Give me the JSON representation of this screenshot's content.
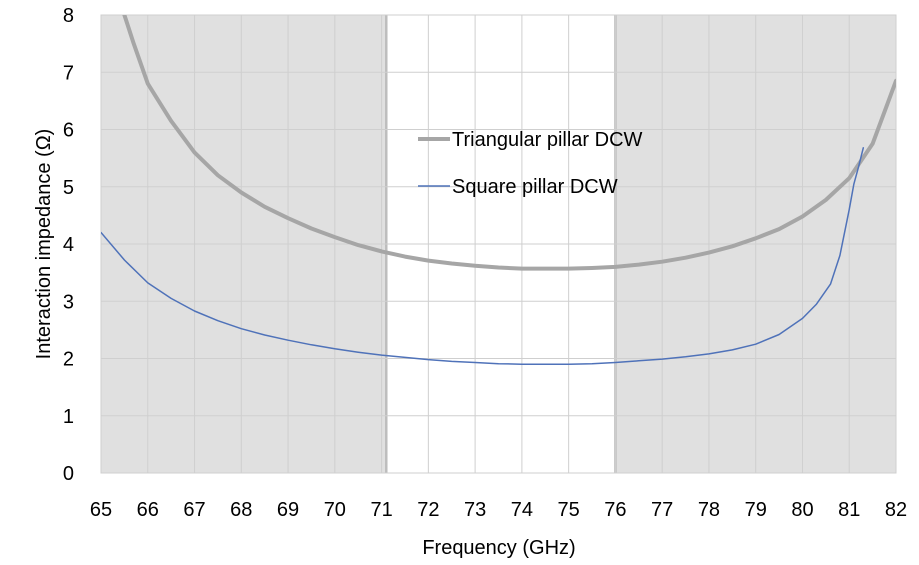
{
  "chart_data": {
    "type": "line",
    "title": "",
    "xlabel": "Frequency (GHz)",
    "ylabel": "Interaction impedance (Ω)",
    "xlim": [
      65,
      82
    ],
    "ylim": [
      0,
      8
    ],
    "x_ticks": [
      "65",
      "66",
      "67",
      "68",
      "69",
      "70",
      "71",
      "72",
      "73",
      "74",
      "75",
      "76",
      "77",
      "78",
      "79",
      "80",
      "81",
      "82"
    ],
    "y_ticks": [
      "0",
      "1",
      "2",
      "3",
      "4",
      "5",
      "6",
      "7",
      "8"
    ],
    "grid": true,
    "legend_position": "center-right",
    "shaded_regions": [
      {
        "from": 65,
        "to": 71.1,
        "color": "#e0e0e0"
      },
      {
        "from": 76,
        "to": 82,
        "color": "#e0e0e0"
      }
    ],
    "series": [
      {
        "name": "Triangular pillar DCW",
        "color": "#a6a6a6",
        "line": "thick",
        "x": [
          65.5,
          65.7,
          66,
          66.5,
          67,
          67.5,
          68,
          68.5,
          69,
          69.5,
          70,
          70.5,
          71,
          71.5,
          72,
          72.5,
          73,
          73.5,
          74,
          74.5,
          75,
          75.5,
          76,
          76.5,
          77,
          77.5,
          78,
          78.5,
          79,
          79.5,
          80,
          80.5,
          81,
          81.5,
          82
        ],
        "values": [
          8.0,
          7.5,
          6.8,
          6.15,
          5.6,
          5.2,
          4.9,
          4.65,
          4.45,
          4.27,
          4.12,
          3.98,
          3.87,
          3.78,
          3.71,
          3.66,
          3.62,
          3.59,
          3.57,
          3.57,
          3.57,
          3.58,
          3.6,
          3.64,
          3.69,
          3.76,
          3.85,
          3.96,
          4.1,
          4.26,
          4.48,
          4.77,
          5.15,
          5.75,
          6.85
        ]
      },
      {
        "name": "Square pillar DCW",
        "color": "#4f72b9",
        "line": "thin",
        "x": [
          65,
          65.5,
          66,
          66.5,
          67,
          67.5,
          68,
          68.5,
          69,
          69.5,
          70,
          70.5,
          71,
          71.5,
          72,
          72.5,
          73,
          73.5,
          74,
          74.5,
          75,
          75.5,
          76,
          76.5,
          77,
          77.5,
          78,
          78.5,
          79,
          79.5,
          80,
          80.3,
          80.6,
          80.8,
          81,
          81.1,
          81.2,
          81.3
        ],
        "values": [
          4.2,
          3.72,
          3.32,
          3.05,
          2.83,
          2.66,
          2.52,
          2.41,
          2.32,
          2.24,
          2.17,
          2.11,
          2.06,
          2.02,
          1.98,
          1.95,
          1.93,
          1.91,
          1.9,
          1.9,
          1.9,
          1.91,
          1.93,
          1.96,
          1.99,
          2.03,
          2.08,
          2.15,
          2.25,
          2.42,
          2.7,
          2.95,
          3.3,
          3.8,
          4.6,
          5.05,
          5.35,
          5.68
        ]
      }
    ]
  }
}
